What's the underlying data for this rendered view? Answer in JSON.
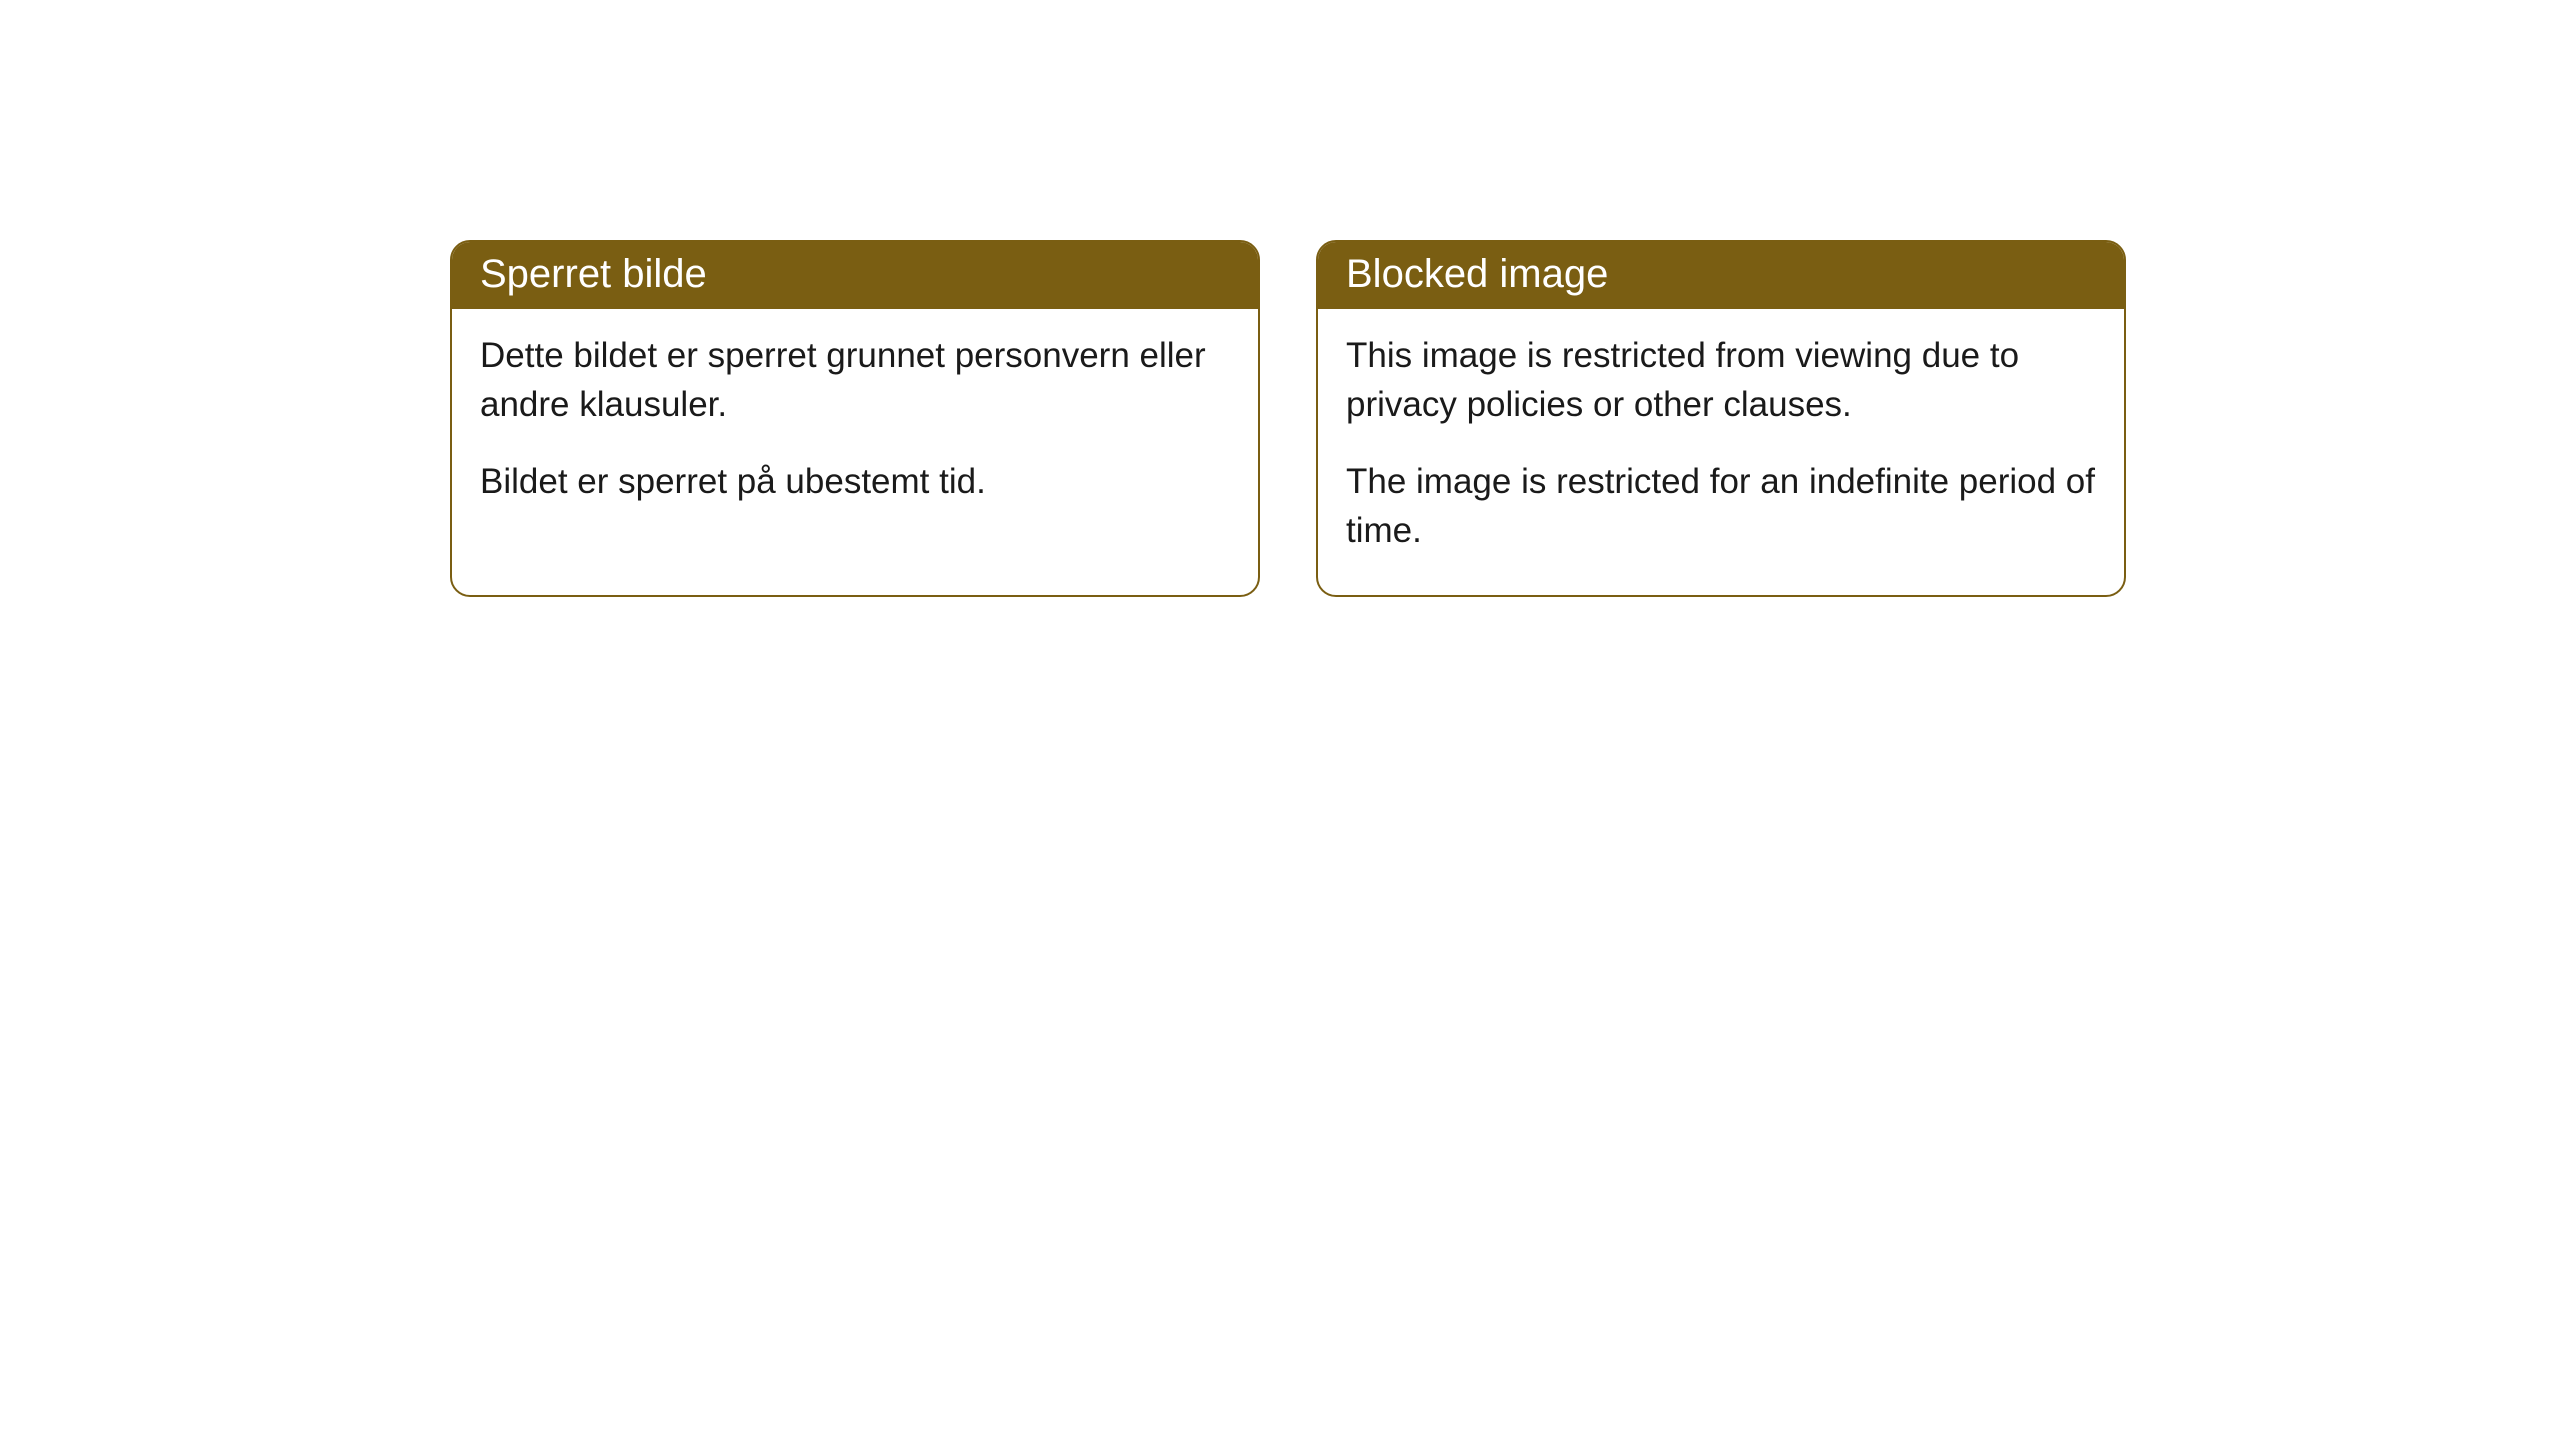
{
  "cards": [
    {
      "title": "Sperret bilde",
      "paragraph1": "Dette bildet er sperret grunnet personvern eller andre klausuler.",
      "paragraph2": "Bildet er sperret på ubestemt tid."
    },
    {
      "title": "Blocked image",
      "paragraph1": "This image is restricted from viewing due to privacy policies or other clauses.",
      "paragraph2": "The image is restricted for an indefinite period of time."
    }
  ],
  "style": {
    "header_background": "#7a5e12",
    "header_text_color": "#ffffff",
    "border_color": "#7a5e12",
    "body_background": "#ffffff",
    "body_text_color": "#1a1a1a",
    "border_radius": "20px",
    "header_fontsize": "40px",
    "body_fontsize": "35px"
  }
}
